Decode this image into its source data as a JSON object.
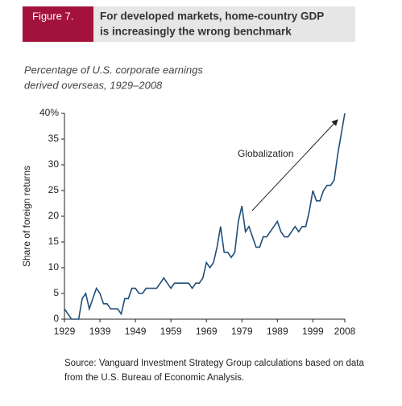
{
  "chart_data": {
    "type": "line",
    "figure_label": "Figure 7.",
    "title": [
      "For developed markets, home-country GDP",
      "is increasingly the wrong benchmark"
    ],
    "subtitle": [
      "Percentage of U.S. corporate earnings",
      "derived overseas, 1929–2008"
    ],
    "y_label": "Share of foreign returns",
    "annotation": "Globalization",
    "source": [
      "Source: Vanguard Investment Strategy Group calculations based on data",
      "from the U.S. Bureau of Economic Analysis."
    ],
    "color": "#1f4e79",
    "x": [
      1929,
      1930,
      1931,
      1932,
      1933,
      1934,
      1935,
      1936,
      1937,
      1938,
      1939,
      1940,
      1941,
      1942,
      1943,
      1944,
      1945,
      1946,
      1947,
      1948,
      1949,
      1950,
      1951,
      1952,
      1953,
      1954,
      1955,
      1956,
      1957,
      1958,
      1959,
      1960,
      1961,
      1962,
      1963,
      1964,
      1965,
      1966,
      1967,
      1968,
      1969,
      1970,
      1971,
      1972,
      1973,
      1974,
      1975,
      1976,
      1977,
      1978,
      1979,
      1980,
      1981,
      1982,
      1983,
      1984,
      1985,
      1986,
      1987,
      1988,
      1989,
      1990,
      1991,
      1992,
      1993,
      1994,
      1995,
      1996,
      1997,
      1998,
      1999,
      2000,
      2001,
      2002,
      2003,
      2004,
      2005,
      2006,
      2007,
      2008
    ],
    "values": [
      2,
      1,
      0,
      0,
      0,
      4,
      5,
      2,
      4,
      6,
      5,
      3,
      3,
      2,
      2,
      2,
      1,
      4,
      4,
      6,
      6,
      5,
      5,
      6,
      6,
      6,
      6,
      7,
      8,
      7,
      6,
      7,
      7,
      7,
      7,
      7,
      6,
      7,
      7,
      8,
      11,
      10,
      11,
      14,
      18,
      13,
      13,
      12,
      13,
      19,
      22,
      17,
      18,
      16,
      14,
      14,
      16,
      16,
      17,
      18,
      19,
      17,
      16,
      16,
      17,
      18,
      17,
      18,
      18,
      21,
      25,
      23,
      23,
      25,
      26,
      26,
      27,
      32,
      36,
      40
    ],
    "xlim": [
      1929,
      2008
    ],
    "xticks": [
      1929,
      1939,
      1949,
      1959,
      1969,
      1979,
      1989,
      1999,
      2008
    ],
    "ylim": [
      0,
      40
    ],
    "yticks": [
      0,
      5,
      10,
      15,
      20,
      25,
      30,
      35,
      {
        "value": 40,
        "label": "40%"
      }
    ],
    "grid": false
  }
}
